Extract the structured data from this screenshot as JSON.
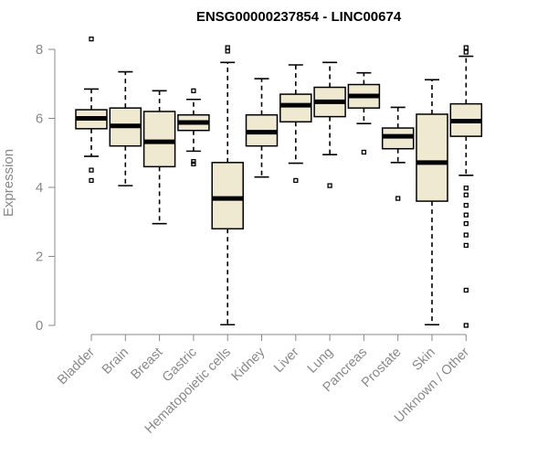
{
  "chart_data": {
    "type": "boxplot",
    "title": "ENSG00000237854 - LINC00674",
    "xlabel": "",
    "ylabel": "Expression",
    "ylim": [
      0,
      8.4
    ],
    "yticks": [
      0,
      2,
      4,
      6,
      8
    ],
    "box_color": "#efe9d2",
    "categories": [
      "Bladder",
      "Brain",
      "Breast",
      "Gastric",
      "Hematopoietic cells",
      "Kidney",
      "Liver",
      "Lung",
      "Pancreas",
      "Prostate",
      "Skin",
      "Unknown / Other"
    ],
    "boxes": [
      {
        "whisker_low": 4.9,
        "q1": 5.7,
        "median": 6.0,
        "q3": 6.25,
        "whisker_high": 6.85,
        "outliers": [
          8.3,
          4.5,
          4.2
        ]
      },
      {
        "whisker_low": 4.05,
        "q1": 5.2,
        "median": 5.78,
        "q3": 6.3,
        "whisker_high": 7.35,
        "outliers": []
      },
      {
        "whisker_low": 2.95,
        "q1": 4.6,
        "median": 5.32,
        "q3": 6.2,
        "whisker_high": 6.8,
        "outliers": []
      },
      {
        "whisker_low": 5.05,
        "q1": 5.65,
        "median": 5.88,
        "q3": 6.1,
        "whisker_high": 6.55,
        "outliers": [
          6.8,
          4.75,
          4.68
        ]
      },
      {
        "whisker_low": 0.02,
        "q1": 2.8,
        "median": 3.68,
        "q3": 4.72,
        "whisker_high": 7.62,
        "outliers": [
          8.05,
          7.95
        ]
      },
      {
        "whisker_low": 4.3,
        "q1": 5.2,
        "median": 5.6,
        "q3": 6.1,
        "whisker_high": 7.15,
        "outliers": []
      },
      {
        "whisker_low": 4.7,
        "q1": 5.9,
        "median": 6.38,
        "q3": 6.7,
        "whisker_high": 7.55,
        "outliers": [
          4.2
        ]
      },
      {
        "whisker_low": 4.95,
        "q1": 6.05,
        "median": 6.48,
        "q3": 6.9,
        "whisker_high": 7.62,
        "outliers": [
          4.05
        ]
      },
      {
        "whisker_low": 5.85,
        "q1": 6.3,
        "median": 6.65,
        "q3": 6.98,
        "whisker_high": 7.32,
        "outliers": [
          5.02
        ]
      },
      {
        "whisker_low": 4.72,
        "q1": 5.12,
        "median": 5.48,
        "q3": 5.72,
        "whisker_high": 6.32,
        "outliers": [
          3.68
        ]
      },
      {
        "whisker_low": 0.02,
        "q1": 3.6,
        "median": 4.72,
        "q3": 6.12,
        "whisker_high": 7.12,
        "outliers": []
      },
      {
        "whisker_low": 4.35,
        "q1": 5.48,
        "median": 5.92,
        "q3": 6.42,
        "whisker_high": 7.8,
        "outliers": [
          8.05,
          7.92,
          3.98,
          3.78,
          3.48,
          3.2,
          2.95,
          2.62,
          2.32,
          1.02,
          0.0
        ]
      }
    ]
  }
}
